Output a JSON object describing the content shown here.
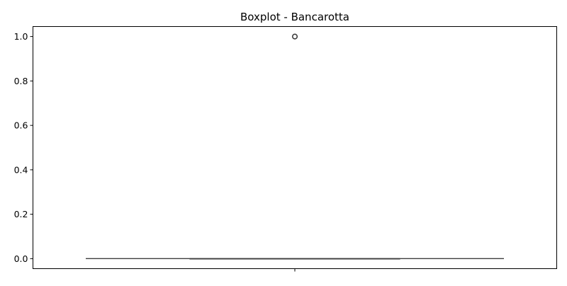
{
  "chart_data": {
    "type": "boxplot",
    "title": "Boxplot - Bancarotta",
    "xlabel": "",
    "ylabel": "",
    "ylim": [
      -0.045,
      1.045
    ],
    "yticks": [
      0.0,
      0.2,
      0.4,
      0.6,
      0.8,
      1.0
    ],
    "ytick_labels": [
      "0.0",
      "0.2",
      "0.4",
      "0.6",
      "0.8",
      "1.0"
    ],
    "xticks": [
      ""
    ],
    "grid": false,
    "series": [
      {
        "values": {
          "whisker_low": 0.0,
          "q1": 0.0,
          "median": 0.0,
          "q3": 0.0,
          "whisker_high": 0.0,
          "outliers": [
            1.0
          ]
        }
      }
    ],
    "colors": {
      "box_edge": "#3f3f3f",
      "outlier_edge": "#3f3f3f",
      "axes": "#000000"
    }
  }
}
